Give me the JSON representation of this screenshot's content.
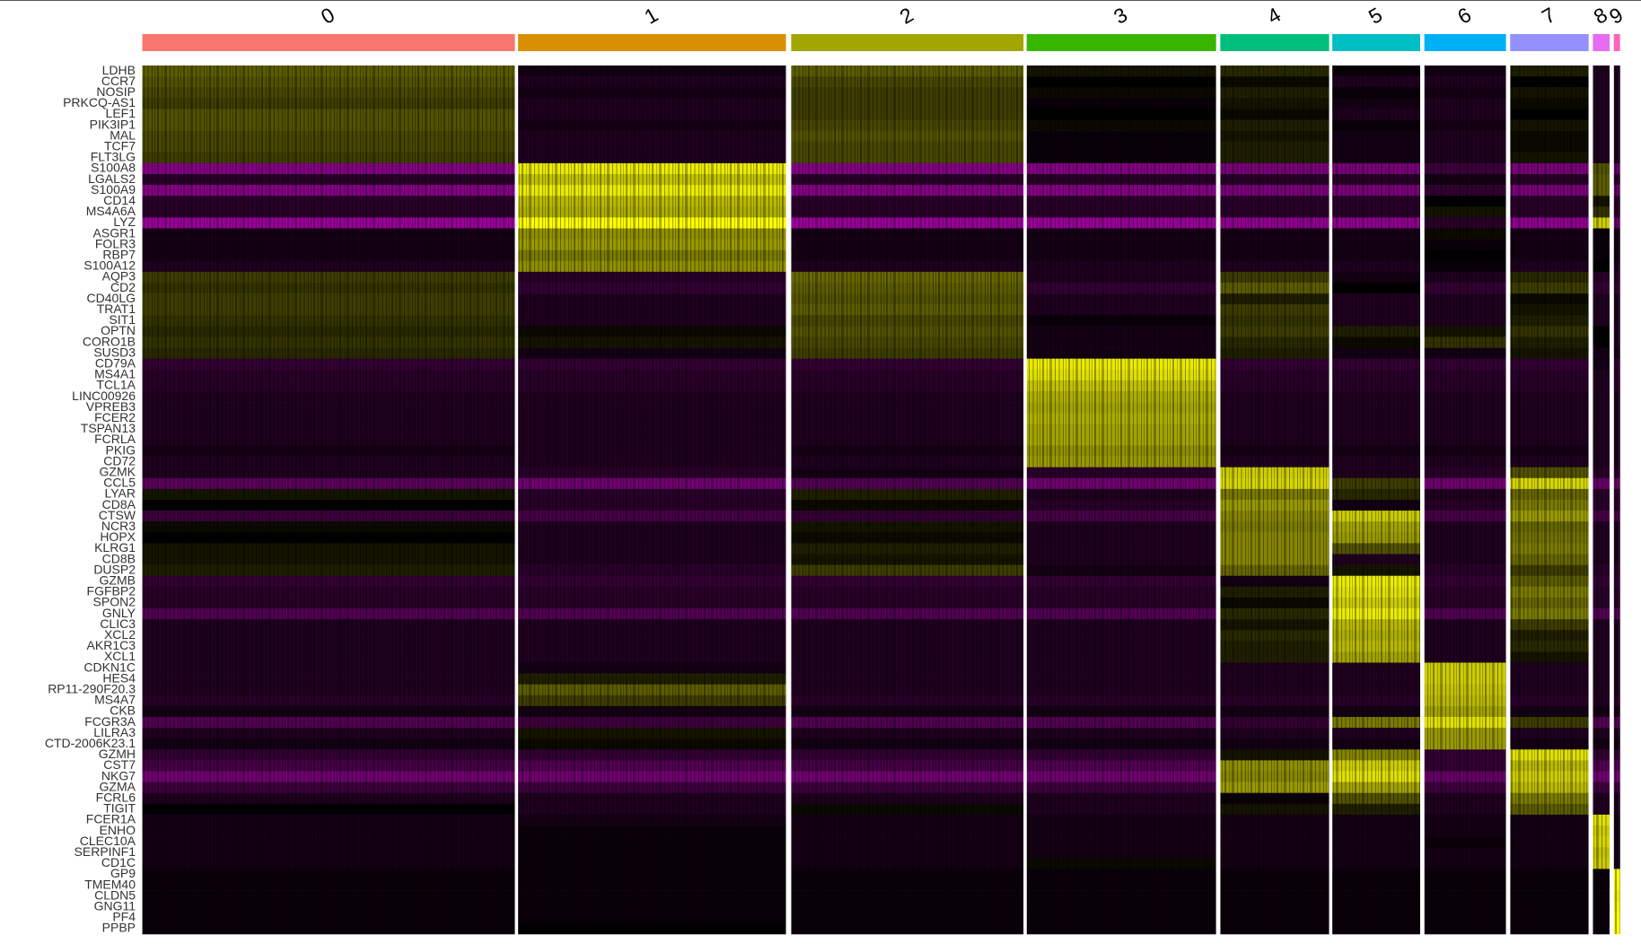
{
  "chart_data": {
    "type": "heatmap",
    "x": [
      "0",
      "1",
      "2",
      "3",
      "4",
      "5",
      "6",
      "7",
      "8",
      "9"
    ],
    "x_colors": [
      "#F8766D",
      "#D89000",
      "#A3A500",
      "#39B600",
      "#00BF7D",
      "#00BFC4",
      "#00B0F6",
      "#9590FF",
      "#E76BF3",
      "#FF62BC"
    ],
    "y": [
      "LDHB",
      "CCR7",
      "NOSIP",
      "PRKCQ-AS1",
      "LEF1",
      "PIK3IP1",
      "MAL",
      "TCF7",
      "FLT3LG",
      "S100A8",
      "LGALS2",
      "S100A9",
      "CD14",
      "MS4A6A",
      "LYZ",
      "ASGR1",
      "FOLR3",
      "RBP7",
      "S100A12",
      "AQP3",
      "CD2",
      "CD40LG",
      "TRAT1",
      "SIT1",
      "OPTN",
      "CORO1B",
      "SUSD3",
      "CD79A",
      "MS4A1",
      "TCL1A",
      "LINC00926",
      "VPREB3",
      "FCER2",
      "TSPAN13",
      "FCRLA",
      "PKIG",
      "CD72",
      "GZMK",
      "CCL5",
      "LYAR",
      "CD8A",
      "CTSW",
      "NCR3",
      "HOPX",
      "KLRG1",
      "CD8B",
      "DUSP2",
      "GZMB",
      "FGFBP2",
      "SPON2",
      "GNLY",
      "CLIC3",
      "XCL2",
      "AKR1C3",
      "XCL1",
      "CDKN1C",
      "HES4",
      "RP11-290F20.3",
      "MS4A7",
      "CKB",
      "FCGR3A",
      "LILRA3",
      "CTD-2006K23.1",
      "GZMH",
      "CST7",
      "NKG7",
      "GZMA",
      "FCRL6",
      "TIGIT",
      "FCER1A",
      "ENHO",
      "CLEC10A",
      "SERPINF1",
      "CD1C",
      "GP9",
      "TMEM40",
      "CLDN5",
      "GNG11",
      "PF4",
      "PPBP"
    ],
    "zlim": [
      -2.5,
      2.5
    ],
    "colormap": [
      "#FF00FF",
      "#000000",
      "#FFFF00"
    ],
    "values": [
      [
        0.9,
        -0.2,
        0.9,
        0.2,
        0.4,
        -0.1,
        -0.2,
        0.3,
        -0.3,
        -0.3
      ],
      [
        0.8,
        -0.3,
        0.7,
        0.0,
        0.1,
        -0.3,
        -0.3,
        0.0,
        -0.3,
        -0.3
      ],
      [
        0.7,
        -0.2,
        0.6,
        0.1,
        0.3,
        -0.1,
        -0.2,
        0.2,
        -0.3,
        -0.3
      ],
      [
        0.6,
        -0.3,
        0.6,
        -0.1,
        0.2,
        -0.2,
        -0.3,
        0.1,
        -0.3,
        -0.3
      ],
      [
        0.8,
        -0.3,
        0.6,
        0.0,
        0.1,
        -0.3,
        -0.3,
        0.0,
        -0.3,
        -0.3
      ],
      [
        0.8,
        -0.2,
        0.7,
        0.1,
        0.3,
        -0.1,
        -0.2,
        0.2,
        -0.3,
        -0.3
      ],
      [
        0.7,
        -0.3,
        0.8,
        -0.1,
        0.2,
        -0.2,
        -0.3,
        0.1,
        -0.3,
        -0.3
      ],
      [
        0.7,
        -0.3,
        0.7,
        -0.1,
        0.3,
        -0.2,
        -0.3,
        0.1,
        -0.3,
        -0.3
      ],
      [
        0.6,
        -0.3,
        0.7,
        -0.1,
        0.3,
        -0.2,
        -0.3,
        0.2,
        -0.3,
        -0.3
      ],
      [
        -1.3,
        2.3,
        -1.3,
        -1.3,
        -1.2,
        -1.2,
        -0.6,
        -1.2,
        0.8,
        -1.0
      ],
      [
        -0.4,
        1.9,
        -0.4,
        -0.4,
        -0.4,
        -0.4,
        -0.2,
        -0.4,
        0.9,
        -0.4
      ],
      [
        -1.3,
        2.3,
        -1.3,
        -1.3,
        -1.2,
        -1.2,
        -0.5,
        -1.2,
        0.9,
        -1.0
      ],
      [
        -0.4,
        1.8,
        -0.4,
        -0.4,
        -0.4,
        -0.4,
        0.0,
        -0.4,
        0.2,
        -0.4
      ],
      [
        -0.4,
        1.7,
        -0.4,
        -0.4,
        -0.4,
        -0.4,
        0.2,
        -0.4,
        0.5,
        -0.4
      ],
      [
        -1.5,
        2.5,
        -1.5,
        -1.5,
        -1.4,
        -1.4,
        -0.4,
        -1.4,
        2.0,
        -1.0
      ],
      [
        -0.2,
        1.4,
        -0.2,
        -0.2,
        -0.2,
        -0.2,
        0.1,
        -0.2,
        -0.1,
        -0.2
      ],
      [
        -0.2,
        1.5,
        -0.2,
        -0.2,
        -0.2,
        -0.2,
        -0.1,
        -0.2,
        -0.1,
        -0.2
      ],
      [
        -0.2,
        1.2,
        -0.2,
        -0.2,
        -0.2,
        -0.2,
        0.0,
        -0.2,
        -0.1,
        -0.2
      ],
      [
        -0.3,
        1.4,
        -0.3,
        -0.3,
        -0.3,
        -0.3,
        -0.1,
        -0.3,
        0.0,
        -0.3
      ],
      [
        0.6,
        -0.4,
        1.0,
        -0.3,
        0.6,
        -0.2,
        -0.3,
        0.4,
        -0.4,
        -0.4
      ],
      [
        0.5,
        -0.5,
        0.9,
        -0.5,
        0.9,
        0.0,
        -0.5,
        0.6,
        -0.5,
        -0.5
      ],
      [
        0.6,
        -0.3,
        0.8,
        -0.3,
        0.3,
        -0.3,
        -0.3,
        0.1,
        -0.3,
        -0.3
      ],
      [
        0.6,
        -0.3,
        0.9,
        -0.3,
        0.6,
        -0.3,
        -0.3,
        0.2,
        -0.3,
        -0.3
      ],
      [
        0.5,
        -0.3,
        0.7,
        -0.1,
        0.5,
        -0.3,
        -0.3,
        0.3,
        -0.3,
        -0.3
      ],
      [
        0.4,
        0.1,
        0.8,
        -0.2,
        0.6,
        0.3,
        0.2,
        0.5,
        0.0,
        -0.3
      ],
      [
        0.5,
        0.2,
        0.7,
        -0.2,
        0.4,
        0.1,
        0.5,
        0.3,
        0.0,
        -0.3
      ],
      [
        0.4,
        -0.2,
        0.6,
        -0.2,
        0.3,
        -0.2,
        -0.2,
        0.2,
        -0.2,
        -0.2
      ],
      [
        -0.5,
        -0.5,
        -0.5,
        2.3,
        -0.5,
        -0.5,
        -0.5,
        -0.5,
        -0.2,
        -0.5
      ],
      [
        -0.4,
        -0.4,
        -0.4,
        2.2,
        -0.4,
        -0.4,
        -0.4,
        -0.4,
        -0.3,
        -0.4
      ],
      [
        -0.4,
        -0.4,
        -0.4,
        1.9,
        -0.4,
        -0.4,
        -0.4,
        -0.4,
        -0.3,
        -0.4
      ],
      [
        -0.3,
        -0.3,
        -0.3,
        1.7,
        -0.3,
        -0.3,
        -0.3,
        -0.3,
        -0.3,
        -0.3
      ],
      [
        -0.3,
        -0.3,
        -0.3,
        1.6,
        -0.3,
        -0.3,
        -0.3,
        -0.3,
        -0.3,
        -0.3
      ],
      [
        -0.3,
        -0.3,
        -0.3,
        1.7,
        -0.3,
        -0.3,
        -0.3,
        -0.3,
        -0.3,
        -0.3
      ],
      [
        -0.3,
        -0.3,
        -0.3,
        1.6,
        -0.3,
        -0.3,
        -0.3,
        -0.3,
        -0.3,
        -0.3
      ],
      [
        -0.3,
        -0.3,
        -0.3,
        1.6,
        -0.3,
        -0.3,
        -0.3,
        -0.3,
        -0.3,
        -0.3
      ],
      [
        -0.2,
        -0.3,
        -0.2,
        1.4,
        -0.2,
        -0.2,
        -0.2,
        -0.2,
        -0.3,
        -0.3
      ],
      [
        -0.3,
        -0.3,
        -0.3,
        1.5,
        -0.3,
        -0.3,
        -0.3,
        -0.3,
        -0.3,
        -0.3
      ],
      [
        -0.3,
        -0.4,
        -0.2,
        -0.4,
        2.0,
        -0.3,
        -0.4,
        0.8,
        -0.4,
        -0.4
      ],
      [
        -0.9,
        -1.1,
        -0.8,
        -1.1,
        2.1,
        0.6,
        -1.1,
        2.1,
        -1.0,
        -1.0
      ],
      [
        0.2,
        -0.4,
        0.3,
        -0.3,
        1.2,
        0.4,
        -0.3,
        1.0,
        -0.4,
        -0.4
      ],
      [
        0.0,
        -0.4,
        0.1,
        -0.4,
        1.5,
        -0.2,
        -0.4,
        1.2,
        -0.4,
        -0.4
      ],
      [
        -0.6,
        -0.7,
        -0.5,
        -0.7,
        1.3,
        2.0,
        -0.7,
        1.5,
        -0.7,
        -0.7
      ],
      [
        0.1,
        -0.3,
        0.2,
        -0.3,
        1.2,
        1.6,
        -0.3,
        1.0,
        -0.3,
        -0.3
      ],
      [
        0.0,
        -0.3,
        0.1,
        -0.3,
        1.3,
        1.5,
        -0.3,
        1.1,
        -0.3,
        -0.3
      ],
      [
        0.2,
        -0.3,
        0.3,
        -0.3,
        1.3,
        0.8,
        -0.3,
        1.2,
        -0.3,
        -0.3
      ],
      [
        0.2,
        -0.3,
        0.2,
        -0.3,
        1.3,
        -0.3,
        -0.3,
        1.0,
        -0.3,
        -0.3
      ],
      [
        0.3,
        -0.4,
        0.6,
        -0.2,
        1.0,
        0.2,
        -0.4,
        0.6,
        -0.4,
        -0.4
      ],
      [
        -0.5,
        -0.5,
        -0.5,
        -0.5,
        -0.2,
        2.3,
        -0.5,
        0.9,
        -0.5,
        -0.5
      ],
      [
        -0.4,
        -0.4,
        -0.4,
        -0.4,
        0.3,
        2.2,
        -0.4,
        1.2,
        -0.4,
        -0.4
      ],
      [
        -0.4,
        -0.4,
        -0.4,
        -0.4,
        0.1,
        2.0,
        -0.4,
        1.0,
        -0.4,
        -0.4
      ],
      [
        -0.8,
        -0.8,
        -0.8,
        -0.8,
        0.4,
        2.3,
        -0.8,
        1.2,
        -0.8,
        -0.8
      ],
      [
        -0.3,
        -0.3,
        -0.3,
        -0.3,
        0.2,
        1.8,
        -0.3,
        0.6,
        -0.3,
        -0.3
      ],
      [
        -0.3,
        -0.3,
        -0.3,
        -0.3,
        0.4,
        1.7,
        -0.3,
        0.3,
        -0.3,
        -0.3
      ],
      [
        -0.3,
        -0.3,
        -0.3,
        -0.3,
        0.3,
        1.8,
        -0.3,
        0.4,
        -0.3,
        -0.3
      ],
      [
        -0.3,
        -0.3,
        -0.3,
        -0.3,
        0.3,
        1.6,
        -0.3,
        0.2,
        -0.3,
        -0.3
      ],
      [
        -0.3,
        -0.2,
        -0.3,
        -0.3,
        -0.3,
        -0.3,
        2.0,
        -0.3,
        -0.3,
        -0.3
      ],
      [
        -0.3,
        0.3,
        -0.3,
        -0.3,
        -0.3,
        -0.3,
        2.0,
        -0.3,
        -0.3,
        -0.3
      ],
      [
        -0.3,
        0.9,
        -0.3,
        -0.3,
        -0.3,
        -0.3,
        1.9,
        -0.3,
        -0.3,
        -0.3
      ],
      [
        -0.4,
        0.6,
        -0.4,
        -0.4,
        -0.4,
        -0.4,
        1.8,
        -0.4,
        -0.3,
        -0.4
      ],
      [
        -0.2,
        -0.2,
        -0.2,
        -0.2,
        -0.2,
        -0.2,
        1.6,
        -0.2,
        -0.2,
        -0.2
      ],
      [
        -0.8,
        -0.6,
        -0.8,
        -0.8,
        -0.5,
        1.2,
        2.2,
        0.6,
        -0.8,
        -0.8
      ],
      [
        -0.3,
        0.2,
        -0.3,
        -0.3,
        -0.3,
        -0.3,
        1.5,
        -0.3,
        -0.3,
        -0.3
      ],
      [
        -0.2,
        0.1,
        -0.2,
        -0.2,
        -0.2,
        -0.2,
        1.5,
        -0.2,
        -0.2,
        -0.2
      ],
      [
        -0.5,
        -0.5,
        -0.5,
        -0.5,
        0.2,
        1.3,
        -0.5,
        2.2,
        -0.5,
        -0.5
      ],
      [
        -0.7,
        -0.8,
        -0.7,
        -0.8,
        1.4,
        2.0,
        -0.5,
        1.8,
        -0.8,
        -0.8
      ],
      [
        -1.1,
        -1.1,
        -1.1,
        -1.1,
        1.3,
        2.2,
        -1.0,
        2.0,
        -1.1,
        -1.1
      ],
      [
        -0.6,
        -0.6,
        -0.6,
        -0.6,
        1.5,
        1.6,
        -0.6,
        1.8,
        -0.6,
        -0.6
      ],
      [
        -0.3,
        -0.3,
        -0.3,
        -0.3,
        -0.1,
        0.8,
        -0.3,
        1.2,
        -0.3,
        -0.3
      ],
      [
        0.0,
        -0.3,
        0.1,
        -0.3,
        0.2,
        0.3,
        -0.3,
        0.9,
        -0.3,
        -0.3
      ],
      [
        -0.2,
        -0.2,
        -0.2,
        -0.2,
        -0.2,
        -0.2,
        -0.2,
        -0.2,
        2.2,
        -0.2
      ],
      [
        -0.2,
        -0.1,
        -0.2,
        -0.2,
        -0.2,
        -0.2,
        -0.2,
        -0.2,
        2.0,
        -0.2
      ],
      [
        -0.2,
        -0.1,
        -0.2,
        -0.2,
        -0.2,
        -0.2,
        -0.1,
        -0.2,
        2.1,
        -0.2
      ],
      [
        -0.2,
        -0.1,
        -0.2,
        -0.2,
        -0.2,
        -0.2,
        -0.2,
        -0.2,
        1.9,
        -0.2
      ],
      [
        -0.2,
        -0.1,
        -0.2,
        0.1,
        -0.2,
        -0.2,
        -0.2,
        -0.2,
        2.0,
        -0.2
      ],
      [
        -0.1,
        -0.1,
        -0.1,
        -0.1,
        -0.1,
        -0.1,
        -0.1,
        -0.1,
        -0.1,
        2.5
      ],
      [
        -0.1,
        -0.1,
        -0.1,
        -0.1,
        -0.1,
        -0.1,
        -0.1,
        -0.1,
        -0.1,
        2.4
      ],
      [
        -0.1,
        -0.1,
        -0.1,
        -0.1,
        -0.1,
        -0.1,
        -0.1,
        -0.1,
        -0.1,
        2.3
      ],
      [
        -0.1,
        -0.1,
        -0.1,
        -0.1,
        -0.1,
        -0.1,
        -0.1,
        -0.1,
        -0.1,
        2.4
      ],
      [
        -0.1,
        -0.1,
        -0.1,
        -0.1,
        -0.1,
        -0.1,
        -0.1,
        -0.1,
        -0.1,
        2.5
      ],
      [
        -0.1,
        0.0,
        -0.1,
        -0.1,
        -0.1,
        -0.1,
        -0.1,
        -0.1,
        -0.1,
        2.5
      ]
    ]
  }
}
